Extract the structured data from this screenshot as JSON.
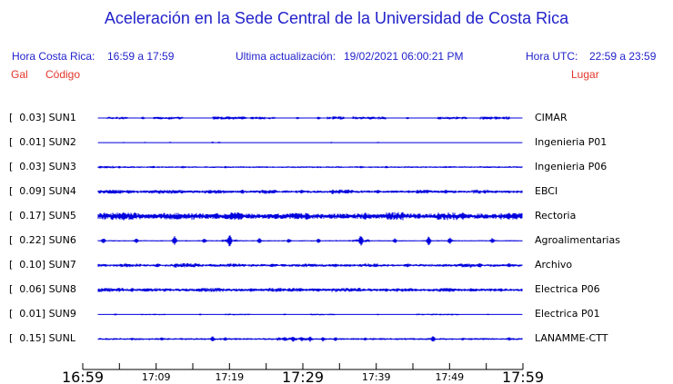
{
  "title": "Aceleración en la Sede Central de la Universidad de Costa Rica",
  "header": {
    "hora_cr_label": "Hora Costa Rica:",
    "hora_cr_value": "16:59 a 17:59",
    "update_label": "Ultima actualización:",
    "update_value": "19/02/2021 06:00:21 PM",
    "hora_utc_label": "Hora UTC:",
    "hora_utc_value": "22:59 a 23:59",
    "col_gal": "Gal",
    "col_codigo": "Código",
    "col_lugar": "Lugar"
  },
  "colors": {
    "blue_text": "#2222cc",
    "red_text": "#e4342a",
    "trace": "#0000dd",
    "axis": "#000000"
  },
  "chart_data": {
    "type": "line",
    "title": "Aceleración en la Sede Central de la Universidad de Costa Rica",
    "x_axis": {
      "start": "16:59",
      "end": "17:59",
      "tick_interval_minutes": 5,
      "ticks": [
        {
          "label": "16:59",
          "size": "large"
        },
        {
          "label": "",
          "size": ""
        },
        {
          "label": "17:09",
          "size": "small"
        },
        {
          "label": "",
          "size": ""
        },
        {
          "label": "17:19",
          "size": "small"
        },
        {
          "label": "",
          "size": ""
        },
        {
          "label": "17:29",
          "size": "large"
        },
        {
          "label": "",
          "size": ""
        },
        {
          "label": "17:39",
          "size": "small"
        },
        {
          "label": "",
          "size": ""
        },
        {
          "label": "17:49",
          "size": "small"
        },
        {
          "label": "",
          "size": ""
        },
        {
          "label": "17:59",
          "size": "large"
        }
      ]
    },
    "y_unit": "Gal",
    "channels": [
      {
        "gal": "0.03",
        "code": "SUN1",
        "place": "CIMAR",
        "wave": {
          "amp": 0.5,
          "bursts": [
            [
              0.02,
              0.07,
              1.4
            ],
            [
              0.13,
              0.2,
              1.5
            ],
            [
              0.27,
              0.35,
              1.7
            ],
            [
              0.36,
              0.42,
              1.5
            ],
            [
              0.54,
              0.58,
              1.8
            ],
            [
              0.6,
              0.68,
              1.6
            ],
            [
              0.8,
              0.87,
              1.5
            ],
            [
              0.9,
              0.97,
              1.7
            ]
          ],
          "spikes": [
            [
              0.105,
              1.8
            ],
            [
              0.47,
              1.4
            ],
            [
              0.52,
              1.8
            ],
            [
              0.73,
              1.4
            ]
          ]
        }
      },
      {
        "gal": "0.01",
        "code": "SUN2",
        "place": "Ingenieria P01",
        "wave": {
          "amp": 0.28,
          "bursts": [],
          "spikes": [
            [
              0.06,
              0.9
            ],
            [
              0.11,
              0.8
            ],
            [
              0.17,
              0.9
            ],
            [
              0.27,
              1.1
            ],
            [
              0.285,
              1.1
            ],
            [
              0.55,
              0.9
            ],
            [
              0.66,
              0.9
            ]
          ]
        }
      },
      {
        "gal": "0.03",
        "code": "SUN3",
        "place": "Ingenieria P06",
        "wave": {
          "amp": 1.0,
          "bursts": [
            [
              0.0,
              0.04,
              1.3
            ]
          ],
          "spikes": [
            [
              0.02,
              1.7
            ],
            [
              0.05,
              1.5
            ],
            [
              0.13,
              1.7
            ],
            [
              0.2,
              1.6
            ],
            [
              0.3,
              1.5
            ],
            [
              0.62,
              1.4
            ],
            [
              0.68,
              1.5
            ],
            [
              0.82,
              1.3
            ]
          ]
        }
      },
      {
        "gal": "0.09",
        "code": "SUN4",
        "place": "EBCI",
        "wave": {
          "amp": 1.5,
          "bursts": [
            [
              0,
              0.08,
              2.2
            ],
            [
              0.12,
              0.2,
              2.3
            ],
            [
              0.25,
              0.3,
              2.2
            ],
            [
              0.38,
              0.42,
              2.3
            ],
            [
              0.55,
              0.6,
              2.6
            ],
            [
              0.75,
              0.78,
              2.2
            ],
            [
              0.88,
              0.92,
              2.3
            ]
          ],
          "spikes": [
            [
              0.34,
              2.8
            ],
            [
              0.48,
              2.5
            ],
            [
              0.585,
              2.8
            ],
            [
              0.66,
              2.5
            ],
            [
              0.82,
              2.6
            ]
          ]
        }
      },
      {
        "gal": "0.17",
        "code": "SUN5",
        "place": "Rectoria",
        "wave": {
          "amp": 2.9,
          "bursts": [
            [
              0,
              0.1,
              4.0
            ],
            [
              0.15,
              0.25,
              3.9
            ],
            [
              0.3,
              0.34,
              4.1
            ],
            [
              0.45,
              0.5,
              3.7
            ],
            [
              0.68,
              0.72,
              4.4
            ],
            [
              0.8,
              0.85,
              4.2
            ],
            [
              0.95,
              1,
              3.7
            ]
          ],
          "spikes": [
            [
              0.06,
              5
            ],
            [
              0.28,
              4.5
            ],
            [
              0.63,
              4.5
            ],
            [
              0.86,
              5
            ]
          ]
        }
      },
      {
        "gal": "0.22",
        "code": "SUN6",
        "place": "Agroalimentarias",
        "wave": {
          "amp": 0.8,
          "bursts": [
            [
              0.29,
              0.33,
              1.6
            ],
            [
              0.6,
              0.64,
              1.6
            ]
          ],
          "spikes": [
            [
              0.012,
              3.8
            ],
            [
              0.09,
              2.8
            ],
            [
              0.18,
              5.5
            ],
            [
              0.25,
              3
            ],
            [
              0.31,
              7.5
            ],
            [
              0.38,
              3.4
            ],
            [
              0.45,
              3
            ],
            [
              0.52,
              3
            ],
            [
              0.62,
              7
            ],
            [
              0.7,
              3
            ],
            [
              0.78,
              5.5
            ],
            [
              0.83,
              4
            ],
            [
              0.93,
              3.4
            ]
          ]
        }
      },
      {
        "gal": "0.10",
        "code": "SUN7",
        "place": "Archivo",
        "wave": {
          "amp": 1.5,
          "bursts": [
            [
              0.05,
              0.1,
              2.1
            ],
            [
              0.18,
              0.24,
              2.3
            ],
            [
              0.3,
              0.34,
              2.1
            ],
            [
              0.48,
              0.52,
              2.0
            ],
            [
              0.62,
              0.66,
              2.1
            ],
            [
              0.85,
              0.88,
              2.3
            ]
          ],
          "spikes": [
            [
              0.14,
              2.7
            ],
            [
              0.41,
              2.5
            ],
            [
              0.56,
              2.3
            ],
            [
              0.73,
              2.5
            ],
            [
              0.9,
              2.9
            ],
            [
              0.97,
              2.9
            ]
          ]
        }
      },
      {
        "gal": "0.06",
        "code": "SUN8",
        "place": "Electrica P06",
        "wave": {
          "amp": 1.6,
          "bursts": [
            [
              0,
              0.06,
              2.3
            ],
            [
              0.1,
              0.16,
              2.1
            ],
            [
              0.22,
              0.3,
              2.3
            ],
            [
              0.4,
              0.48,
              2.1
            ],
            [
              0.55,
              0.62,
              2.3
            ],
            [
              0.7,
              0.74,
              2.0
            ],
            [
              0.8,
              0.84,
              2.1
            ]
          ],
          "spikes": [
            [
              0.08,
              2.9
            ],
            [
              0.36,
              2.5
            ],
            [
              0.52,
              2.3
            ],
            [
              0.68,
              2.3
            ],
            [
              0.88,
              2.5
            ],
            [
              0.95,
              2.3
            ]
          ]
        }
      },
      {
        "gal": "0.01",
        "code": "SUN9",
        "place": "Electrica P01",
        "wave": {
          "amp": 0.5,
          "bursts": [
            [
              0.1,
              0.16,
              0.9
            ],
            [
              0.3,
              0.36,
              1.0
            ],
            [
              0.5,
              0.56,
              0.9
            ],
            [
              0.75,
              0.85,
              1.0
            ]
          ],
          "spikes": [
            [
              0.04,
              1.3
            ],
            [
              0.24,
              1.1
            ],
            [
              0.44,
              1.2
            ],
            [
              0.66,
              1.1
            ],
            [
              0.92,
              1.1
            ]
          ]
        }
      },
      {
        "gal": "0.15",
        "code": "SUNL",
        "place": "LANAMME-CTT",
        "wave": {
          "amp": 1.1,
          "bursts": [
            [
              0.42,
              0.5,
              1.8
            ]
          ],
          "spikes": [
            [
              0.08,
              1.8
            ],
            [
              0.15,
              2.2
            ],
            [
              0.27,
              3.4
            ],
            [
              0.3,
              2.4
            ],
            [
              0.44,
              2.8
            ],
            [
              0.46,
              3.8
            ],
            [
              0.48,
              2.8
            ],
            [
              0.5,
              3.2
            ],
            [
              0.53,
              2.8
            ],
            [
              0.56,
              2.4
            ],
            [
              0.63,
              2
            ],
            [
              0.79,
              3.8
            ],
            [
              0.86,
              1.8
            ],
            [
              0.97,
              2.2
            ]
          ]
        }
      }
    ]
  }
}
